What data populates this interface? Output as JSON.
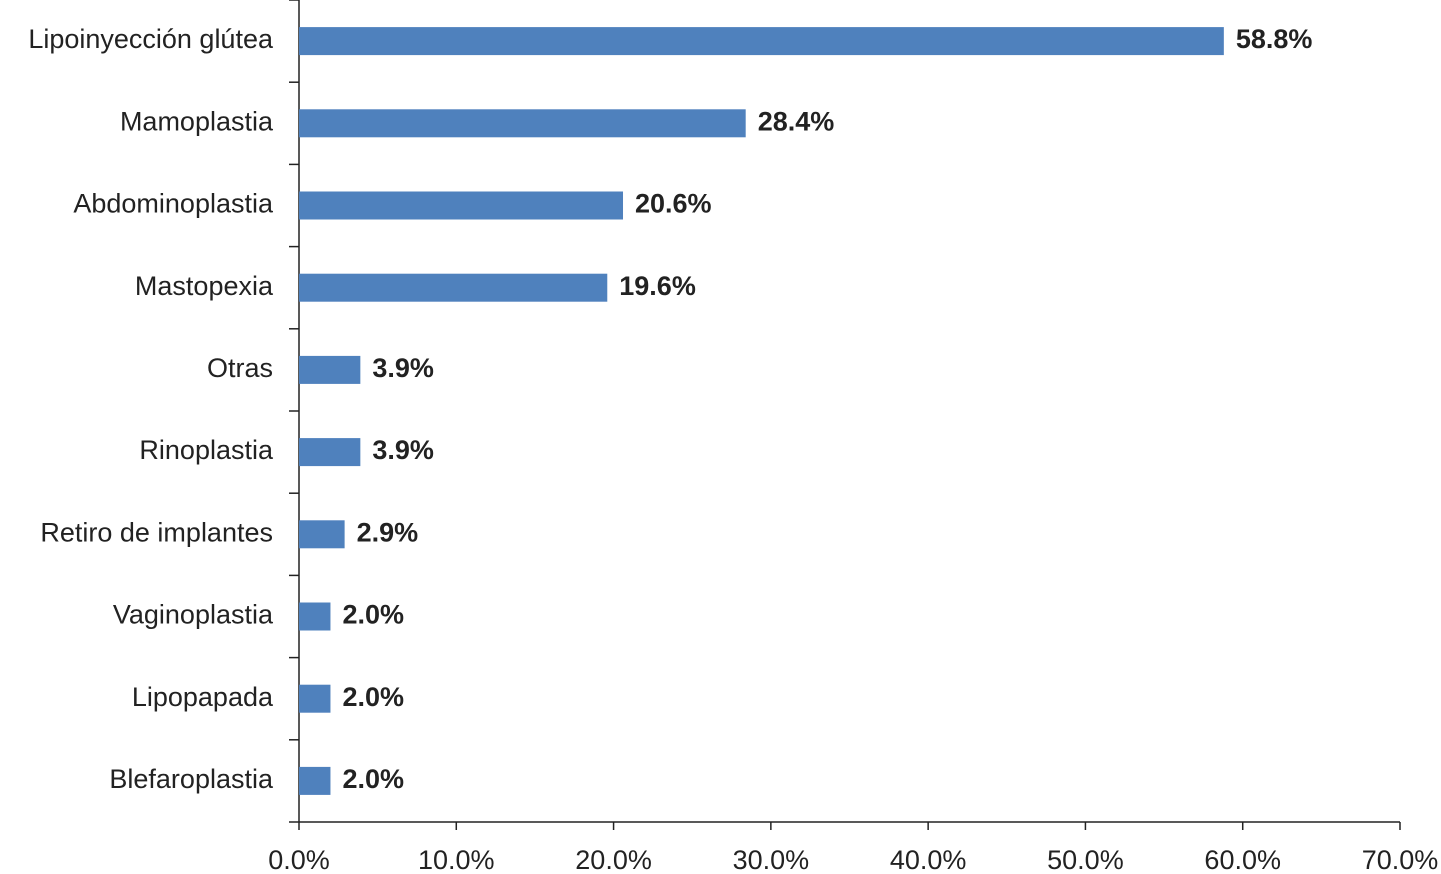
{
  "chart_data": {
    "type": "hbar",
    "categories": [
      "Lipoinyección glútea",
      "Mamoplastia",
      "Abdominoplastia",
      "Mastopexia",
      "Otras",
      "Rinoplastia",
      "Retiro de implantes",
      "Vaginoplastia",
      "Lipopapada",
      "Blefaroplastia"
    ],
    "values": [
      58.8,
      28.4,
      20.6,
      19.6,
      3.9,
      3.9,
      2.9,
      2.0,
      2.0,
      2.0
    ],
    "value_labels": [
      "58.8%",
      "28.4%",
      "20.6%",
      "19.6%",
      "3.9%",
      "3.9%",
      "2.9%",
      "2.0%",
      "2.0%",
      "2.0%"
    ],
    "color": "#4f81bd",
    "xlim": [
      0,
      70
    ],
    "xticks": [
      {
        "value": 0,
        "label": "0.0%"
      },
      {
        "value": 10,
        "label": "10.0%"
      },
      {
        "value": 20,
        "label": "20.0%"
      },
      {
        "value": 30,
        "label": "30.0%"
      },
      {
        "value": 40,
        "label": "40.0%"
      },
      {
        "value": 50,
        "label": "50.0%"
      },
      {
        "value": 60,
        "label": "60.0%"
      },
      {
        "value": 70,
        "label": "70.0%"
      }
    ],
    "grid": false
  }
}
